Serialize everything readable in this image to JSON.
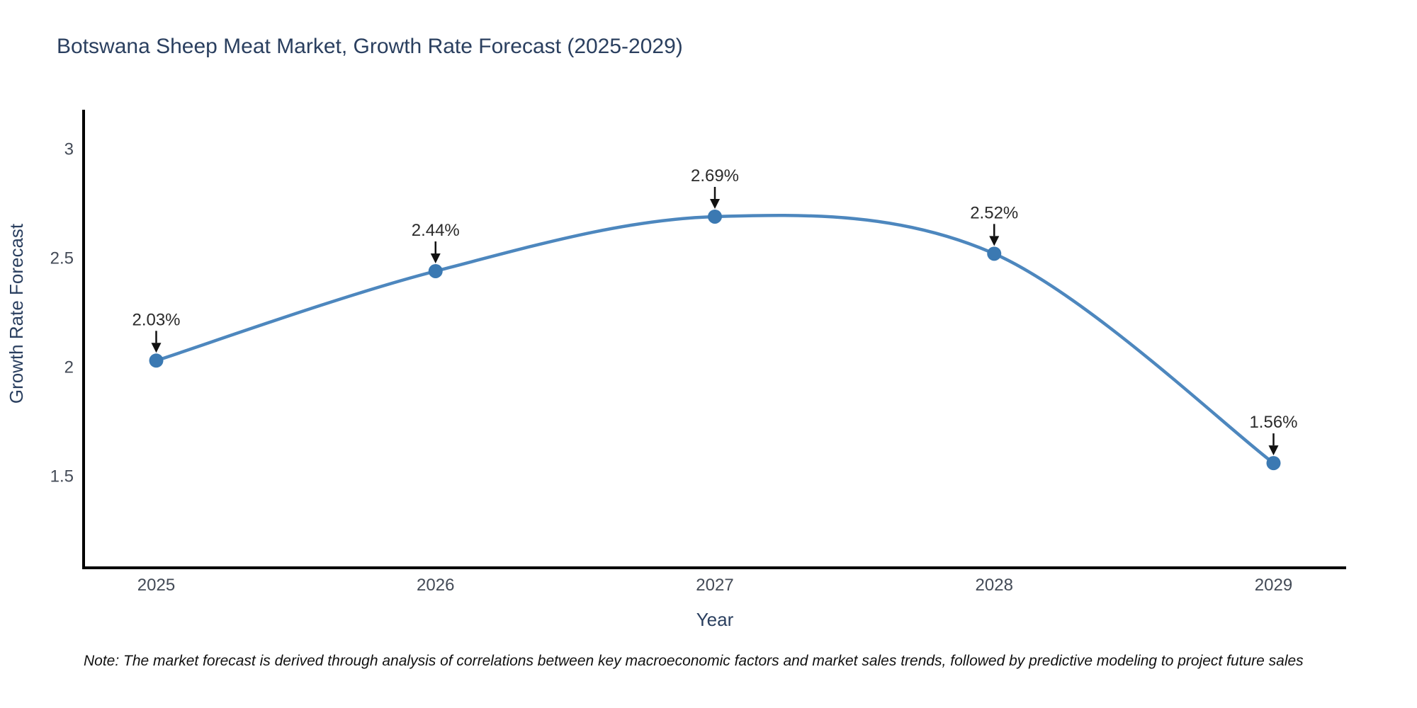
{
  "page": {
    "background": "#ffffff"
  },
  "chart_data": {
    "type": "line",
    "title": "Botswana Sheep Meat Market, Growth Rate Forecast (2025-2029)",
    "xlabel": "Year",
    "ylabel": "Growth Rate Forecast",
    "categories": [
      2025,
      2026,
      2027,
      2028,
      2029
    ],
    "series": [
      {
        "name": "Growth Rate Forecast",
        "values": [
          2.03,
          2.44,
          2.69,
          2.52,
          1.56
        ]
      }
    ],
    "point_labels": [
      "2.03%",
      "2.44%",
      "2.69%",
      "2.52%",
      "1.56%"
    ],
    "y_ticks": [
      1.5,
      2,
      2.5,
      3
    ],
    "y_tick_labels": [
      "1.5",
      "2",
      "2.5",
      "3"
    ],
    "x_range": [
      2024.74,
      2029.26
    ],
    "y_range": [
      1.08,
      3.18
    ],
    "grid": false,
    "legend": "none",
    "line_shape": "spline",
    "annotation_style": "black-down-arrow-to-point",
    "note": "Note: The market forecast is derived through analysis of correlations between key macroeconomic factors and market sales trends, followed by predictive modeling to project future sales",
    "colors": {
      "line": "#4d87be",
      "marker": "#3b79b2",
      "axis": "#000000",
      "title_text": "#2a3f5f",
      "axis_title_text": "#2a3f5f",
      "tick_text": "#444b57",
      "annotation_text": "#2b2b2b",
      "arrow": "#111111",
      "note_text": "#111111"
    }
  }
}
